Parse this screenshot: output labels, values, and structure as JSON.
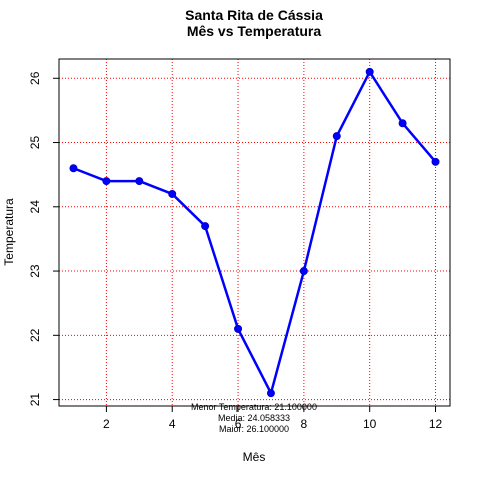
{
  "chart_data": {
    "type": "line",
    "title": "Santa Rita de Cássia",
    "subtitle": "Mês vs Temperatura",
    "xlabel": "Mês",
    "ylabel": "Temperatura",
    "x": [
      1,
      2,
      3,
      4,
      5,
      6,
      7,
      8,
      9,
      10,
      11,
      12
    ],
    "series": [
      {
        "values": [
          24.6,
          24.4,
          24.4,
          24.2,
          23.7,
          22.1,
          21.1,
          23.0,
          25.1,
          26.1,
          25.3,
          24.7
        ]
      }
    ],
    "xlim": [
      0.56,
      12.44
    ],
    "ylim": [
      20.9,
      26.3
    ],
    "xticks": [
      2,
      4,
      6,
      8,
      10,
      12
    ],
    "yticks": [
      21,
      22,
      23,
      24,
      25,
      26
    ],
    "grid": true,
    "colors": {
      "line": "#0000ff",
      "grid": "#ff0000"
    },
    "annotations": [
      "Menor Temperatura: 21.100000",
      "Media: 24.058333",
      "Maior: 26.100000"
    ]
  }
}
